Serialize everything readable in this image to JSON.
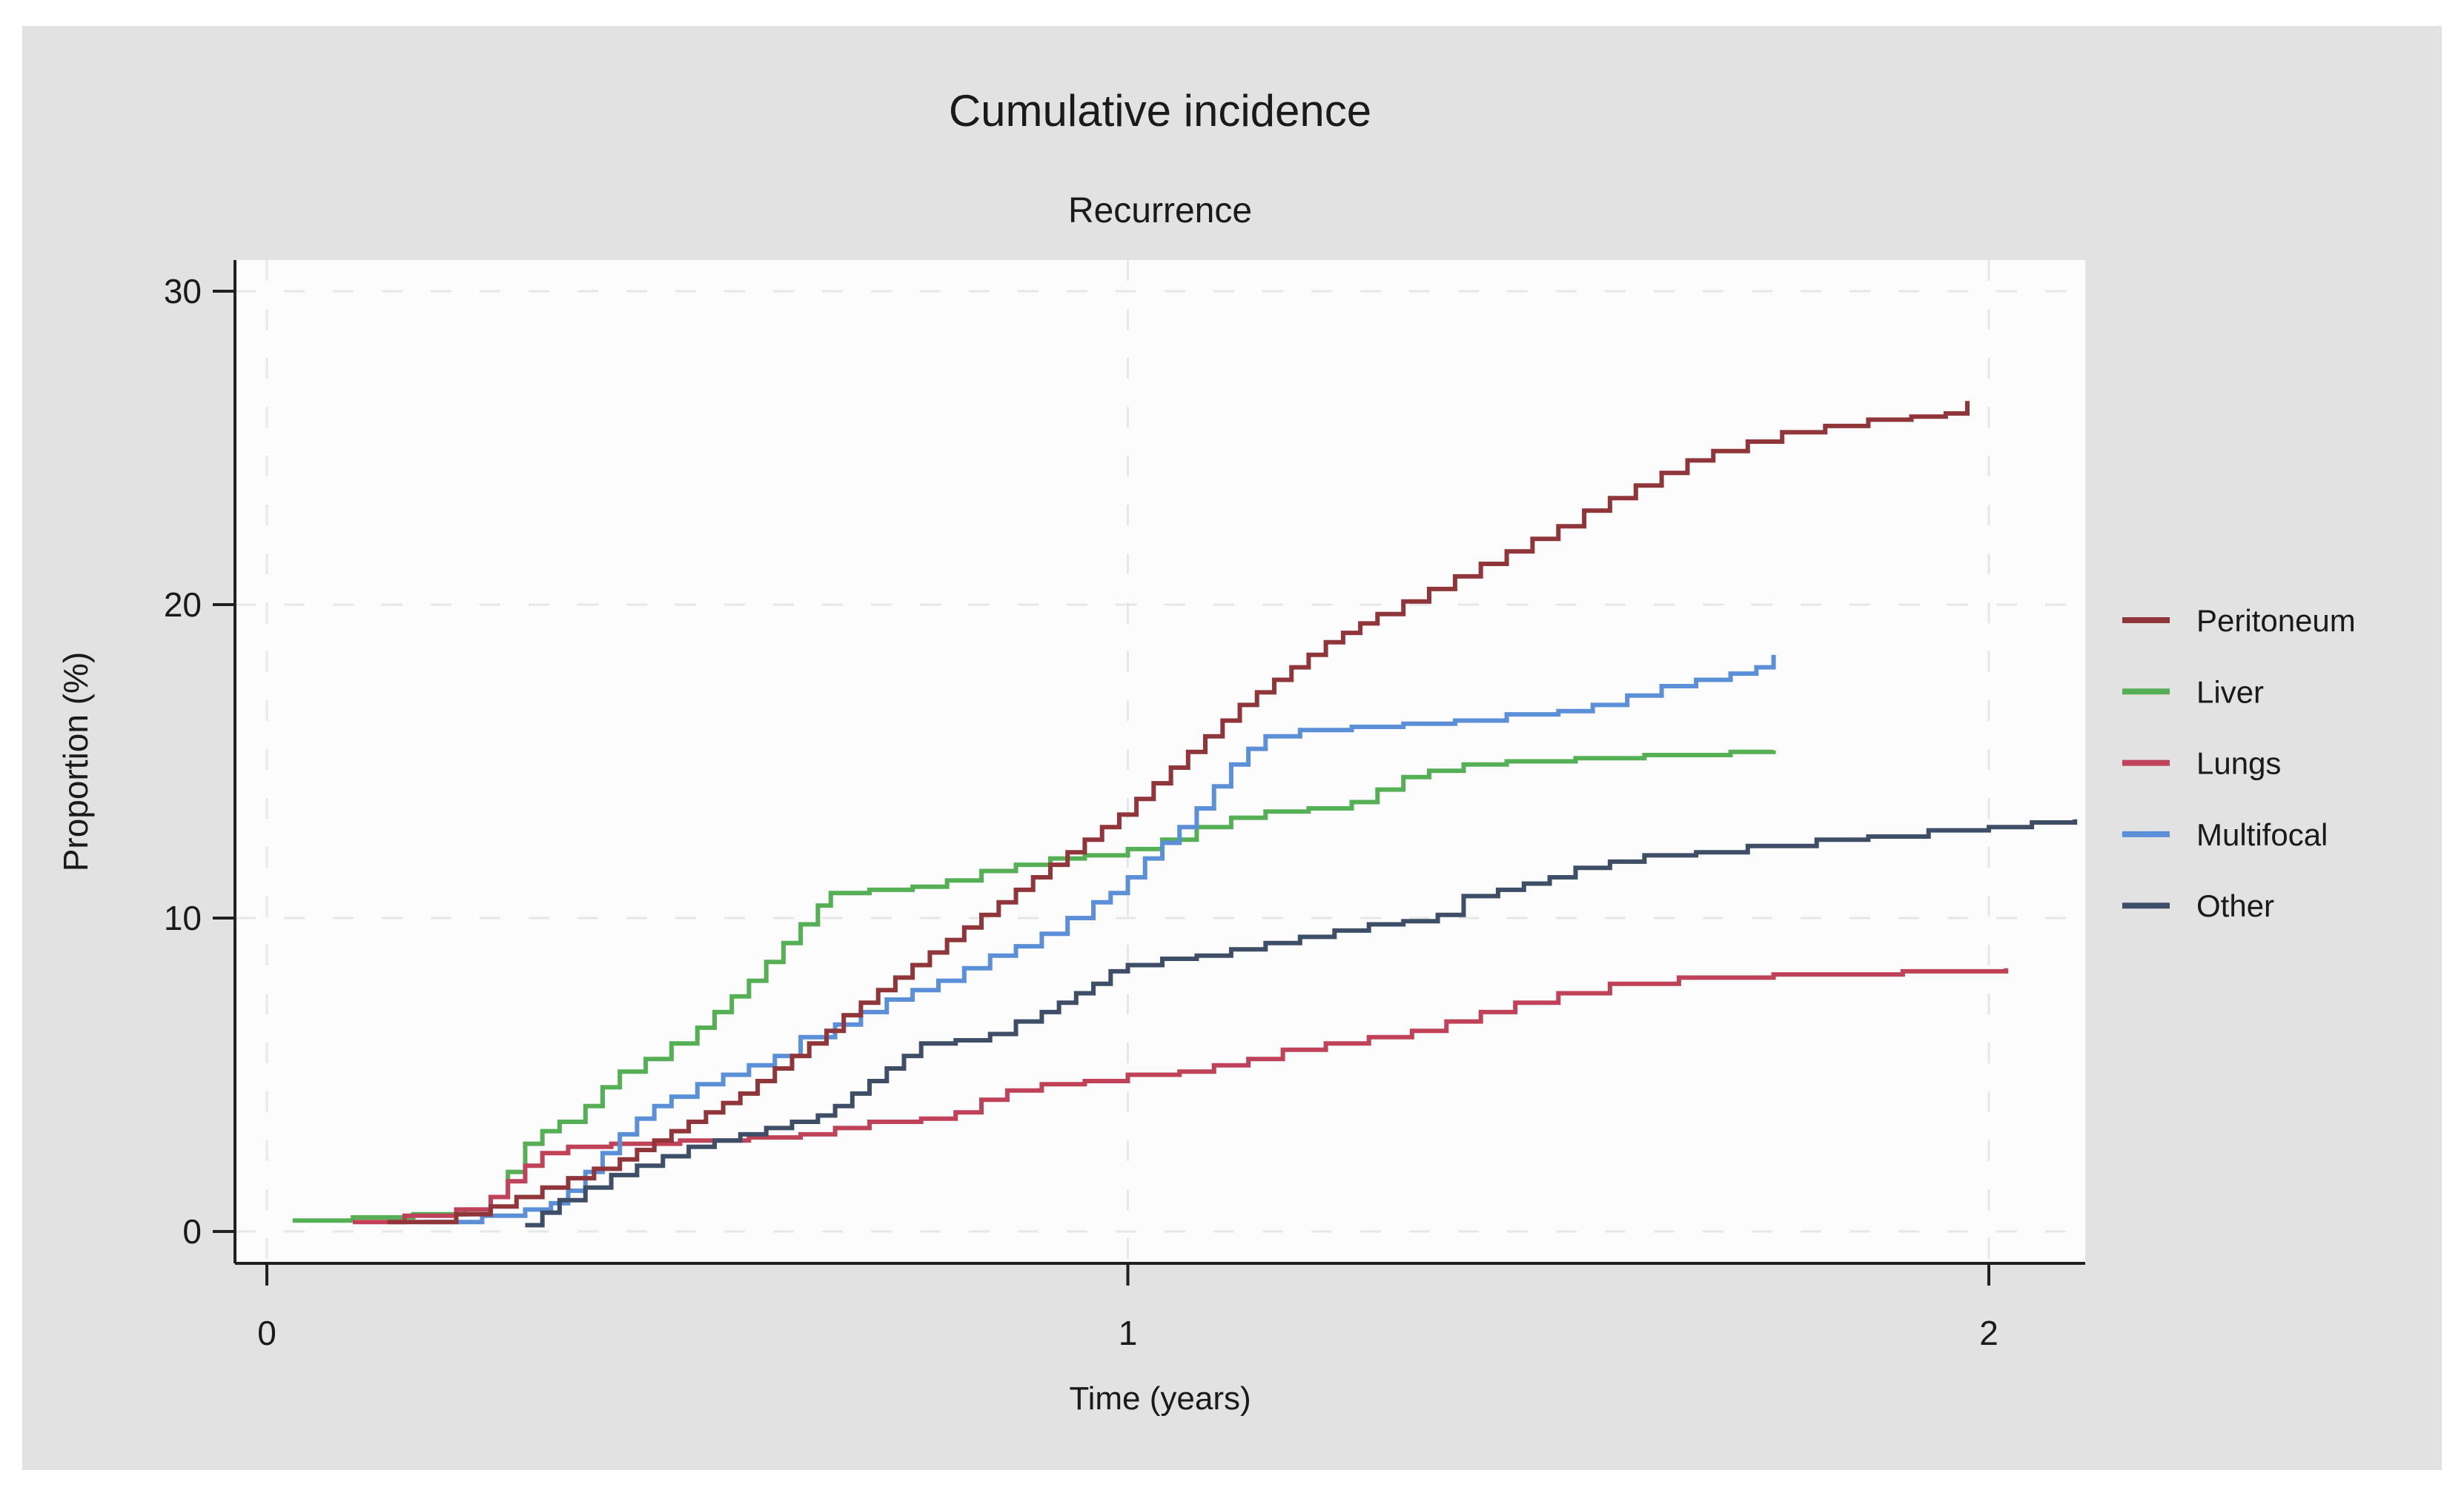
{
  "page": {
    "background": "#ffffff",
    "panel_background": "#e2e2e2",
    "plot_background": "#fcfcfc",
    "axis_color": "#202020",
    "text_color": "#1a1a1a",
    "gridline_color": "#e7e7e7"
  },
  "chart_data": {
    "type": "line",
    "interpolation": "step-after",
    "title": "Cumulative incidence",
    "subtitle": "Recurrence",
    "xlabel": "Time (years)",
    "ylabel": "Proportion (%)",
    "xlim": [
      0,
      2.12
    ],
    "ylim": [
      0,
      31
    ],
    "x_ticks": [
      0,
      1,
      2
    ],
    "y_ticks": [
      0,
      10,
      20,
      30
    ],
    "grid": {
      "style": "dashed",
      "x_lines": [
        0,
        1,
        2
      ],
      "y_lines": [
        0,
        10,
        20,
        30
      ]
    },
    "legend_position": "right",
    "series": [
      {
        "name": "Peritoneum",
        "color": "#903539",
        "points": [
          [
            0.14,
            0.3
          ],
          [
            0.22,
            0.55
          ],
          [
            0.26,
            0.8
          ],
          [
            0.29,
            1.1
          ],
          [
            0.32,
            1.4
          ],
          [
            0.35,
            1.7
          ],
          [
            0.38,
            2.0
          ],
          [
            0.41,
            2.3
          ],
          [
            0.43,
            2.6
          ],
          [
            0.45,
            2.9
          ],
          [
            0.47,
            3.2
          ],
          [
            0.49,
            3.5
          ],
          [
            0.51,
            3.8
          ],
          [
            0.53,
            4.1
          ],
          [
            0.55,
            4.4
          ],
          [
            0.57,
            4.8
          ],
          [
            0.59,
            5.2
          ],
          [
            0.61,
            5.6
          ],
          [
            0.63,
            6.0
          ],
          [
            0.65,
            6.4
          ],
          [
            0.67,
            6.9
          ],
          [
            0.69,
            7.3
          ],
          [
            0.71,
            7.7
          ],
          [
            0.73,
            8.1
          ],
          [
            0.75,
            8.5
          ],
          [
            0.77,
            8.9
          ],
          [
            0.79,
            9.3
          ],
          [
            0.81,
            9.7
          ],
          [
            0.83,
            10.1
          ],
          [
            0.85,
            10.5
          ],
          [
            0.87,
            10.9
          ],
          [
            0.89,
            11.3
          ],
          [
            0.91,
            11.7
          ],
          [
            0.93,
            12.1
          ],
          [
            0.95,
            12.5
          ],
          [
            0.97,
            12.9
          ],
          [
            0.99,
            13.3
          ],
          [
            1.01,
            13.8
          ],
          [
            1.03,
            14.3
          ],
          [
            1.05,
            14.8
          ],
          [
            1.07,
            15.3
          ],
          [
            1.09,
            15.8
          ],
          [
            1.11,
            16.3
          ],
          [
            1.13,
            16.8
          ],
          [
            1.15,
            17.2
          ],
          [
            1.17,
            17.6
          ],
          [
            1.19,
            18.0
          ],
          [
            1.21,
            18.4
          ],
          [
            1.23,
            18.8
          ],
          [
            1.25,
            19.1
          ],
          [
            1.27,
            19.4
          ],
          [
            1.29,
            19.7
          ],
          [
            1.32,
            20.1
          ],
          [
            1.35,
            20.5
          ],
          [
            1.38,
            20.9
          ],
          [
            1.41,
            21.3
          ],
          [
            1.44,
            21.7
          ],
          [
            1.47,
            22.1
          ],
          [
            1.5,
            22.5
          ],
          [
            1.53,
            23.0
          ],
          [
            1.56,
            23.4
          ],
          [
            1.59,
            23.8
          ],
          [
            1.62,
            24.2
          ],
          [
            1.65,
            24.6
          ],
          [
            1.68,
            24.9
          ],
          [
            1.72,
            25.2
          ],
          [
            1.76,
            25.5
          ],
          [
            1.81,
            25.7
          ],
          [
            1.86,
            25.9
          ],
          [
            1.91,
            26.0
          ],
          [
            1.95,
            26.1
          ],
          [
            1.975,
            26.5
          ]
        ]
      },
      {
        "name": "Liver",
        "color": "#55b055",
        "points": [
          [
            0.03,
            0.35
          ],
          [
            0.1,
            0.45
          ],
          [
            0.17,
            0.55
          ],
          [
            0.23,
            0.7
          ],
          [
            0.26,
            1.1
          ],
          [
            0.28,
            1.9
          ],
          [
            0.3,
            2.8
          ],
          [
            0.32,
            3.2
          ],
          [
            0.34,
            3.5
          ],
          [
            0.37,
            4.0
          ],
          [
            0.39,
            4.6
          ],
          [
            0.41,
            5.1
          ],
          [
            0.44,
            5.5
          ],
          [
            0.47,
            6.0
          ],
          [
            0.5,
            6.5
          ],
          [
            0.52,
            7.0
          ],
          [
            0.54,
            7.5
          ],
          [
            0.56,
            8.0
          ],
          [
            0.58,
            8.6
          ],
          [
            0.6,
            9.2
          ],
          [
            0.62,
            9.8
          ],
          [
            0.64,
            10.4
          ],
          [
            0.655,
            10.8
          ],
          [
            0.7,
            10.9
          ],
          [
            0.75,
            11.0
          ],
          [
            0.79,
            11.2
          ],
          [
            0.83,
            11.5
          ],
          [
            0.87,
            11.7
          ],
          [
            0.91,
            11.9
          ],
          [
            0.95,
            12.0
          ],
          [
            1.0,
            12.2
          ],
          [
            1.04,
            12.5
          ],
          [
            1.08,
            12.9
          ],
          [
            1.12,
            13.2
          ],
          [
            1.16,
            13.4
          ],
          [
            1.21,
            13.5
          ],
          [
            1.26,
            13.7
          ],
          [
            1.29,
            14.1
          ],
          [
            1.32,
            14.5
          ],
          [
            1.35,
            14.7
          ],
          [
            1.39,
            14.9
          ],
          [
            1.44,
            15.0
          ],
          [
            1.52,
            15.1
          ],
          [
            1.6,
            15.2
          ],
          [
            1.7,
            15.3
          ],
          [
            1.75,
            15.35
          ]
        ]
      },
      {
        "name": "Lungs",
        "color": "#bf4258",
        "points": [
          [
            0.1,
            0.3
          ],
          [
            0.16,
            0.5
          ],
          [
            0.22,
            0.7
          ],
          [
            0.26,
            1.1
          ],
          [
            0.28,
            1.6
          ],
          [
            0.3,
            2.1
          ],
          [
            0.32,
            2.5
          ],
          [
            0.35,
            2.7
          ],
          [
            0.4,
            2.8
          ],
          [
            0.48,
            2.9
          ],
          [
            0.56,
            3.0
          ],
          [
            0.62,
            3.1
          ],
          [
            0.66,
            3.3
          ],
          [
            0.7,
            3.5
          ],
          [
            0.76,
            3.6
          ],
          [
            0.8,
            3.8
          ],
          [
            0.83,
            4.2
          ],
          [
            0.86,
            4.5
          ],
          [
            0.9,
            4.7
          ],
          [
            0.95,
            4.8
          ],
          [
            1.0,
            5.0
          ],
          [
            1.06,
            5.1
          ],
          [
            1.1,
            5.3
          ],
          [
            1.14,
            5.5
          ],
          [
            1.18,
            5.8
          ],
          [
            1.23,
            6.0
          ],
          [
            1.28,
            6.2
          ],
          [
            1.33,
            6.4
          ],
          [
            1.37,
            6.7
          ],
          [
            1.41,
            7.0
          ],
          [
            1.45,
            7.3
          ],
          [
            1.5,
            7.6
          ],
          [
            1.56,
            7.9
          ],
          [
            1.64,
            8.1
          ],
          [
            1.75,
            8.2
          ],
          [
            1.9,
            8.3
          ],
          [
            2.02,
            8.4
          ]
        ]
      },
      {
        "name": "Multifocal",
        "color": "#5b8fd8",
        "points": [
          [
            0.18,
            0.3
          ],
          [
            0.25,
            0.5
          ],
          [
            0.3,
            0.7
          ],
          [
            0.33,
            0.9
          ],
          [
            0.35,
            1.3
          ],
          [
            0.37,
            1.9
          ],
          [
            0.39,
            2.5
          ],
          [
            0.41,
            3.1
          ],
          [
            0.43,
            3.6
          ],
          [
            0.45,
            4.0
          ],
          [
            0.47,
            4.3
          ],
          [
            0.5,
            4.7
          ],
          [
            0.53,
            5.0
          ],
          [
            0.56,
            5.3
          ],
          [
            0.59,
            5.6
          ],
          [
            0.62,
            6.2
          ],
          [
            0.66,
            6.6
          ],
          [
            0.69,
            7.0
          ],
          [
            0.72,
            7.4
          ],
          [
            0.75,
            7.7
          ],
          [
            0.78,
            8.0
          ],
          [
            0.81,
            8.4
          ],
          [
            0.84,
            8.8
          ],
          [
            0.87,
            9.1
          ],
          [
            0.9,
            9.5
          ],
          [
            0.93,
            10.0
          ],
          [
            0.96,
            10.5
          ],
          [
            0.98,
            10.8
          ],
          [
            1.0,
            11.3
          ],
          [
            1.02,
            11.9
          ],
          [
            1.04,
            12.4
          ],
          [
            1.06,
            12.9
          ],
          [
            1.08,
            13.5
          ],
          [
            1.1,
            14.2
          ],
          [
            1.12,
            14.9
          ],
          [
            1.14,
            15.4
          ],
          [
            1.16,
            15.8
          ],
          [
            1.2,
            16.0
          ],
          [
            1.26,
            16.1
          ],
          [
            1.32,
            16.2
          ],
          [
            1.38,
            16.3
          ],
          [
            1.44,
            16.5
          ],
          [
            1.5,
            16.6
          ],
          [
            1.54,
            16.8
          ],
          [
            1.58,
            17.1
          ],
          [
            1.62,
            17.4
          ],
          [
            1.66,
            17.6
          ],
          [
            1.7,
            17.8
          ],
          [
            1.73,
            18.0
          ],
          [
            1.75,
            18.4
          ]
        ]
      },
      {
        "name": "Other",
        "color": "#3e4e66",
        "points": [
          [
            0.3,
            0.2
          ],
          [
            0.32,
            0.6
          ],
          [
            0.34,
            1.0
          ],
          [
            0.37,
            1.4
          ],
          [
            0.4,
            1.8
          ],
          [
            0.43,
            2.1
          ],
          [
            0.46,
            2.4
          ],
          [
            0.49,
            2.7
          ],
          [
            0.52,
            2.9
          ],
          [
            0.55,
            3.1
          ],
          [
            0.58,
            3.3
          ],
          [
            0.61,
            3.5
          ],
          [
            0.64,
            3.7
          ],
          [
            0.66,
            4.0
          ],
          [
            0.68,
            4.4
          ],
          [
            0.7,
            4.8
          ],
          [
            0.72,
            5.2
          ],
          [
            0.74,
            5.6
          ],
          [
            0.76,
            6.0
          ],
          [
            0.8,
            6.1
          ],
          [
            0.84,
            6.3
          ],
          [
            0.87,
            6.7
          ],
          [
            0.9,
            7.0
          ],
          [
            0.92,
            7.3
          ],
          [
            0.94,
            7.6
          ],
          [
            0.96,
            7.9
          ],
          [
            0.98,
            8.3
          ],
          [
            1.0,
            8.5
          ],
          [
            1.04,
            8.7
          ],
          [
            1.08,
            8.8
          ],
          [
            1.12,
            9.0
          ],
          [
            1.16,
            9.2
          ],
          [
            1.2,
            9.4
          ],
          [
            1.24,
            9.6
          ],
          [
            1.28,
            9.8
          ],
          [
            1.32,
            9.9
          ],
          [
            1.36,
            10.1
          ],
          [
            1.39,
            10.7
          ],
          [
            1.43,
            10.9
          ],
          [
            1.46,
            11.1
          ],
          [
            1.49,
            11.3
          ],
          [
            1.52,
            11.6
          ],
          [
            1.56,
            11.8
          ],
          [
            1.6,
            12.0
          ],
          [
            1.66,
            12.1
          ],
          [
            1.72,
            12.3
          ],
          [
            1.8,
            12.5
          ],
          [
            1.86,
            12.6
          ],
          [
            1.93,
            12.8
          ],
          [
            2.0,
            12.9
          ],
          [
            2.05,
            13.05
          ],
          [
            2.1,
            13.15
          ]
        ]
      }
    ]
  }
}
